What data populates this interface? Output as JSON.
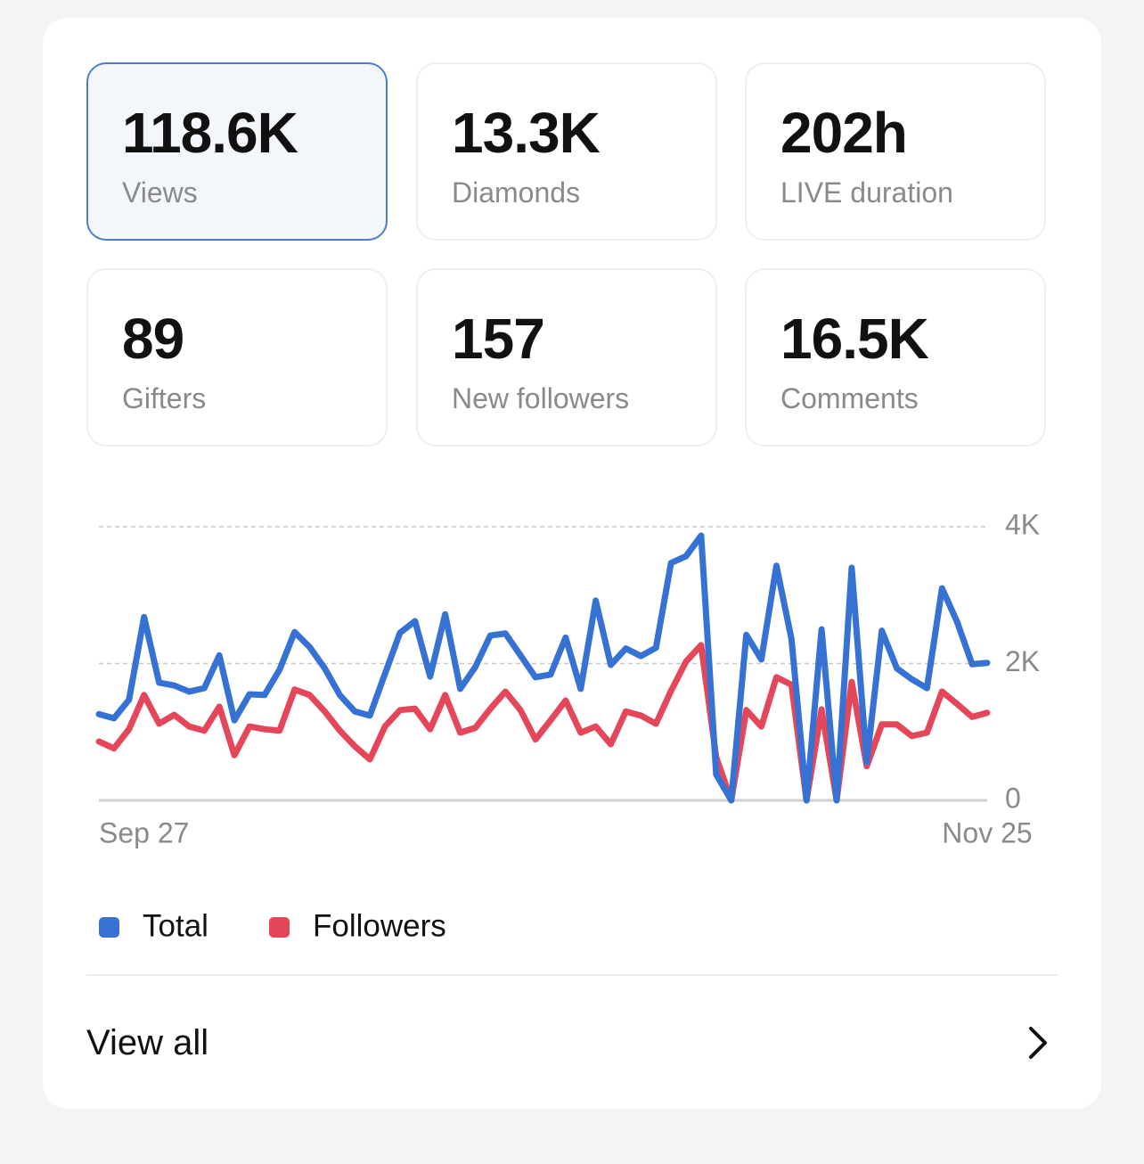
{
  "stats": [
    {
      "value": "118.6K",
      "label": "Views"
    },
    {
      "value": "13.3K",
      "label": "Diamonds"
    },
    {
      "value": "202h",
      "label": "LIVE duration"
    },
    {
      "value": "89",
      "label": "Gifters"
    },
    {
      "value": "157",
      "label": "New followers"
    },
    {
      "value": "16.5K",
      "label": "Comments"
    }
  ],
  "chart_data": {
    "type": "line",
    "categories": [
      "Sep 27",
      null,
      null,
      null,
      null,
      null,
      null,
      null,
      null,
      null,
      null,
      null,
      null,
      null,
      null,
      null,
      null,
      null,
      null,
      null,
      null,
      null,
      null,
      null,
      null,
      null,
      null,
      null,
      null,
      null,
      null,
      null,
      null,
      null,
      null,
      null,
      null,
      null,
      null,
      null,
      null,
      null,
      null,
      null,
      null,
      null,
      null,
      null,
      null,
      null,
      null,
      null,
      null,
      null,
      null,
      null,
      null,
      null,
      null,
      "Nov 25"
    ],
    "series": [
      {
        "name": "Total",
        "color": "#3672d4",
        "values": [
          1260,
          1200,
          1470,
          2680,
          1720,
          1680,
          1590,
          1640,
          2120,
          1170,
          1550,
          1540,
          1910,
          2460,
          2240,
          1930,
          1540,
          1300,
          1240,
          1850,
          2450,
          2620,
          1810,
          2720,
          1630,
          1950,
          2410,
          2440,
          2120,
          1800,
          1840,
          2380,
          1630,
          2920,
          1980,
          2220,
          2110,
          2230,
          3470,
          3570,
          3870,
          380,
          0,
          2420,
          2060,
          3430,
          2360,
          0,
          2500,
          0,
          3400,
          560,
          2480,
          1930,
          1770,
          1640,
          3100,
          2610,
          1990,
          2010
        ]
      },
      {
        "name": "Followers",
        "color": "#e5475a",
        "values": [
          860,
          760,
          1040,
          1540,
          1120,
          1250,
          1080,
          1020,
          1370,
          660,
          1080,
          1040,
          1020,
          1620,
          1540,
          1300,
          1020,
          790,
          600,
          1080,
          1320,
          1340,
          1040,
          1540,
          990,
          1060,
          1340,
          1590,
          1320,
          890,
          1170,
          1460,
          990,
          1080,
          820,
          1300,
          1240,
          1120,
          1600,
          2030,
          2270,
          630,
          0,
          1320,
          1080,
          1800,
          1690,
          0,
          1330,
          0,
          1730,
          500,
          1110,
          1110,
          940,
          990,
          1590,
          1410,
          1220,
          1280
        ]
      }
    ],
    "ylim": [
      0,
      4000
    ],
    "yticks": [
      0,
      {
        "value": 2000,
        "label": "2K"
      },
      {
        "value": 4000,
        "label": "4K"
      }
    ],
    "grid": true
  },
  "footer": {
    "link": "View all"
  }
}
